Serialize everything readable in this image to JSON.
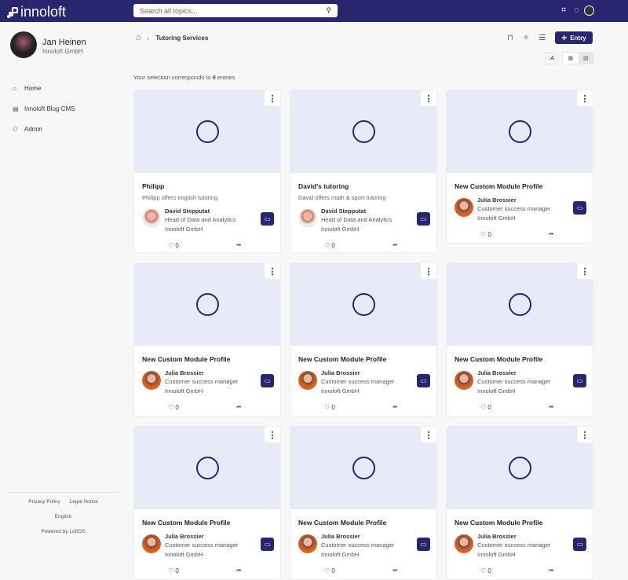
{
  "nav": {
    "brand": "innoloft",
    "search_placeholder": "Search all topics..."
  },
  "user": {
    "name": "Jan Heinen",
    "org": "Innoloft GmbH"
  },
  "menu": [
    {
      "label": "Home",
      "icon": "⌂"
    },
    {
      "label": "Innoloft Blog CMS",
      "icon": "▤"
    },
    {
      "label": "Admin",
      "icon": "⚇"
    }
  ],
  "footer": {
    "privacy": "Privacy Policy",
    "legal": "Legal Notice",
    "language": "English",
    "powered": "Powered by LoftOS"
  },
  "breadcrumb": {
    "current": "Tutoring Services"
  },
  "toolbar": {
    "entry_label": "Entry"
  },
  "count": {
    "prefix": "Your selection corresponds to ",
    "number": "9",
    "suffix": " entries"
  },
  "cards": [
    {
      "title": "Philipp",
      "desc": "Philipp offers english tutoring",
      "name": "David Stepputat",
      "role": "Head of Data and Analytics",
      "org": "Innoloft GmbH",
      "likes": "0",
      "avatar": "d"
    },
    {
      "title": "David's tutoring",
      "desc": "David offers math & sport tutoring",
      "name": "David Stepputat",
      "role": "Head of Data and Analytics",
      "org": "Innoloft GmbH",
      "likes": "0",
      "avatar": "d"
    },
    {
      "title": "New Custom Module Profile",
      "desc": "",
      "name": "Julia Brossier",
      "role": "Customer success manager",
      "org": "Innoloft GmbH",
      "likes": "0",
      "avatar": "j"
    },
    {
      "title": "New Custom Module Profile",
      "desc": "",
      "name": "Julia Brossier",
      "role": "Customer success manager",
      "org": "Innoloft GmbH",
      "likes": "0",
      "avatar": "j"
    },
    {
      "title": "New Custom Module Profile",
      "desc": "",
      "name": "Julia Brossier",
      "role": "Customer success manager",
      "org": "Innoloft GmbH",
      "likes": "0",
      "avatar": "j"
    },
    {
      "title": "New Custom Module Profile",
      "desc": "",
      "name": "Julia Brossier",
      "role": "Customer success manager",
      "org": "Innoloft GmbH",
      "likes": "0",
      "avatar": "j"
    },
    {
      "title": "New Custom Module Profile",
      "desc": "",
      "name": "Julia Brossier",
      "role": "Customer success manager",
      "org": "Innoloft GmbH",
      "likes": "0",
      "avatar": "j"
    },
    {
      "title": "New Custom Module Profile",
      "desc": "",
      "name": "Julia Brossier",
      "role": "Customer success manager",
      "org": "Innoloft GmbH",
      "likes": "0",
      "avatar": "j"
    },
    {
      "title": "New Custom Module Profile",
      "desc": "",
      "name": "Julia Brossier",
      "role": "Customer success manager",
      "org": "Innoloft GmbH",
      "likes": "0",
      "avatar": "j"
    }
  ]
}
